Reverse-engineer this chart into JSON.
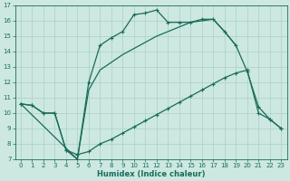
{
  "xlabel": "Humidex (Indice chaleur)",
  "background_color": "#cce8e0",
  "grid_color": "#aad0c8",
  "line_color": "#1a6b5a",
  "xlim": [
    -0.5,
    23.5
  ],
  "ylim": [
    7,
    17
  ],
  "yticks": [
    7,
    8,
    9,
    10,
    11,
    12,
    13,
    14,
    15,
    16,
    17
  ],
  "xticks": [
    0,
    1,
    2,
    3,
    4,
    5,
    6,
    7,
    8,
    9,
    10,
    11,
    12,
    13,
    14,
    15,
    16,
    17,
    18,
    19,
    20,
    21,
    22,
    23
  ],
  "line1_x": [
    0,
    1,
    2,
    3,
    4,
    5,
    6,
    7,
    8,
    9,
    10,
    11,
    12,
    13,
    14,
    15,
    16,
    17,
    18,
    19,
    20,
    21,
    22,
    23
  ],
  "line1_y": [
    10.6,
    10.5,
    10.0,
    10.0,
    7.6,
    7.0,
    12.0,
    14.4,
    14.9,
    15.3,
    16.4,
    16.5,
    16.7,
    15.9,
    15.9,
    15.9,
    16.1,
    16.1,
    15.3,
    14.4,
    12.7,
    10.4,
    9.6,
    9.0
  ],
  "line2_x": [
    0,
    1,
    2,
    3,
    4,
    5,
    6,
    7,
    8,
    9,
    10,
    11,
    12,
    13,
    14,
    15,
    16,
    17,
    18,
    19,
    20,
    21,
    22,
    23
  ],
  "line2_y": [
    10.6,
    10.5,
    10.0,
    10.0,
    7.6,
    7.3,
    7.5,
    8.0,
    8.3,
    8.7,
    9.1,
    9.5,
    9.9,
    10.3,
    10.7,
    11.1,
    11.5,
    11.9,
    12.3,
    12.6,
    12.8,
    10.0,
    9.6,
    9.0
  ],
  "line3_x": [
    0,
    5,
    6,
    7,
    8,
    9,
    10,
    11,
    12,
    13,
    14,
    15,
    16,
    17,
    18,
    19
  ],
  "line3_y": [
    10.6,
    7.0,
    11.5,
    12.8,
    13.3,
    13.8,
    14.2,
    14.6,
    15.0,
    15.3,
    15.6,
    15.9,
    16.0,
    16.1,
    15.3,
    14.4
  ]
}
